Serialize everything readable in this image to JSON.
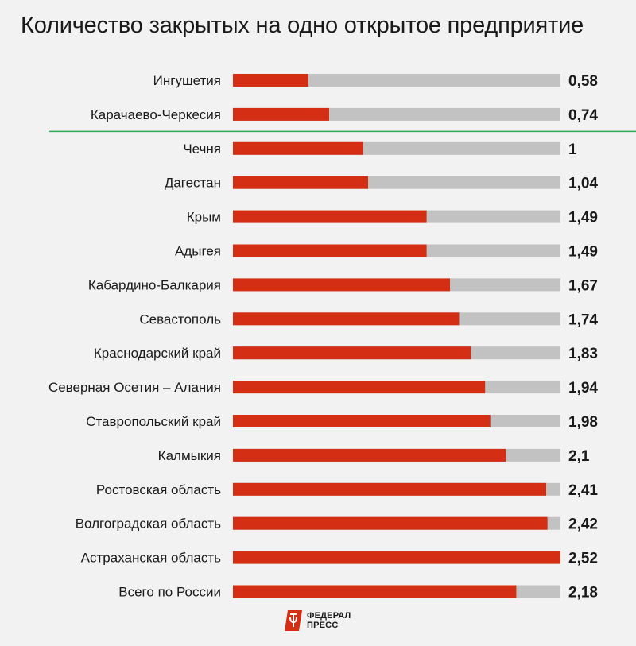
{
  "chart_data": {
    "type": "bar",
    "orientation": "horizontal",
    "title": "Количество закрытых на одно открытое предприятие",
    "categories": [
      "Ингушетия",
      "Карачаево-Черкесия",
      "Чечня",
      "Дагестан",
      "Крым",
      "Адыгея",
      "Кабардино-Балкария",
      "Севастополь",
      "Краснодарский край",
      "Северная Осетия – Алания",
      "Ставропольский край",
      "Калмыкия",
      "Ростовская область",
      "Волгоградская область",
      "Астраханская область",
      "Всего по России"
    ],
    "values": [
      0.58,
      0.74,
      1,
      1.04,
      1.49,
      1.49,
      1.67,
      1.74,
      1.83,
      1.94,
      1.98,
      2.1,
      2.41,
      2.42,
      2.52,
      2.18
    ],
    "value_labels": [
      "0,58",
      "0,74",
      "1",
      "1,04",
      "1,49",
      "1,49",
      "1,67",
      "1,74",
      "1,83",
      "1,94",
      "1,98",
      "2,1",
      "2,41",
      "2,42",
      "2,52",
      "2,18"
    ],
    "xlim": [
      0,
      2.52
    ],
    "reference_line_value": 1,
    "grid": false,
    "colors": {
      "bar": "#d42e14",
      "track": "#c2c2c2",
      "reference_line": "#2fa84f"
    }
  },
  "logo": {
    "line1": "ФЕДЕРАЛ",
    "line2": "ПРЕСС",
    "icon": "federalpress-logo-icon"
  }
}
